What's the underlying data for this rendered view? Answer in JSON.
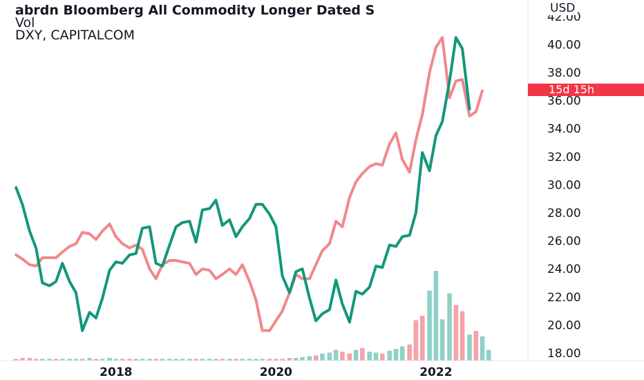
{
  "legend": {
    "title": "abrdn Bloomberg All Commodity Longer Dated S",
    "volume": "Vol",
    "comparison": "DXY, CAPITALCOM"
  },
  "axis": {
    "currency": "USD",
    "countdown": "15d 15h"
  },
  "colors": {
    "primary_series": "#13977a",
    "comparison_series": "#f0888c",
    "volume_up": "#8fd1c6",
    "volume_down": "#f5a3a8",
    "countdown_bg": "#f23645"
  },
  "chart_data": {
    "type": "line",
    "ylabel": "USD",
    "ylim": [
      17.5,
      42.0
    ],
    "y_ticks": [
      "18.00",
      "20.00",
      "22.00",
      "24.00",
      "26.00",
      "28.00",
      "30.00",
      "32.00",
      "34.00",
      "36.00",
      "38.00",
      "40.00",
      "42.00"
    ],
    "x_tick_labels": [
      {
        "label": "2018",
        "t": 2018.0
      },
      {
        "label": "2020",
        "t": 2020.0
      },
      {
        "label": "2022",
        "t": 2022.0
      }
    ],
    "xlim": [
      2016.55,
      2023.15
    ],
    "series": [
      {
        "role": "primary",
        "values": [
          [
            2016.75,
            29.8
          ],
          [
            2016.83,
            28.6
          ],
          [
            2016.92,
            26.7
          ],
          [
            2017.0,
            25.5
          ],
          [
            2017.08,
            23.0
          ],
          [
            2017.17,
            22.8
          ],
          [
            2017.25,
            23.1
          ],
          [
            2017.33,
            24.4
          ],
          [
            2017.42,
            23.1
          ],
          [
            2017.5,
            22.3
          ],
          [
            2017.58,
            19.6
          ],
          [
            2017.67,
            20.9
          ],
          [
            2017.75,
            20.5
          ],
          [
            2017.83,
            21.9
          ],
          [
            2017.92,
            23.9
          ],
          [
            2018.0,
            24.5
          ],
          [
            2018.08,
            24.4
          ],
          [
            2018.17,
            25.0
          ],
          [
            2018.25,
            25.1
          ],
          [
            2018.33,
            26.9
          ],
          [
            2018.42,
            27.0
          ],
          [
            2018.5,
            24.4
          ],
          [
            2018.58,
            24.2
          ],
          [
            2018.67,
            25.7
          ],
          [
            2018.75,
            27.0
          ],
          [
            2018.83,
            27.3
          ],
          [
            2018.92,
            27.4
          ],
          [
            2019.0,
            25.9
          ],
          [
            2019.08,
            28.2
          ],
          [
            2019.17,
            28.3
          ],
          [
            2019.25,
            28.9
          ],
          [
            2019.33,
            27.1
          ],
          [
            2019.42,
            27.5
          ],
          [
            2019.5,
            26.3
          ],
          [
            2019.58,
            27.0
          ],
          [
            2019.67,
            27.6
          ],
          [
            2019.75,
            28.6
          ],
          [
            2019.83,
            28.6
          ],
          [
            2019.92,
            27.9
          ],
          [
            2020.0,
            27.0
          ],
          [
            2020.08,
            23.5
          ],
          [
            2020.17,
            22.3
          ],
          [
            2020.25,
            23.8
          ],
          [
            2020.33,
            24.0
          ],
          [
            2020.42,
            21.9
          ],
          [
            2020.5,
            20.3
          ],
          [
            2020.58,
            20.8
          ],
          [
            2020.67,
            21.1
          ],
          [
            2020.75,
            23.2
          ],
          [
            2020.83,
            21.5
          ],
          [
            2020.92,
            20.2
          ],
          [
            2021.0,
            22.4
          ],
          [
            2021.08,
            22.2
          ],
          [
            2021.17,
            22.7
          ],
          [
            2021.25,
            24.2
          ],
          [
            2021.33,
            24.1
          ],
          [
            2021.42,
            25.7
          ],
          [
            2021.5,
            25.6
          ],
          [
            2021.58,
            26.3
          ],
          [
            2021.67,
            26.4
          ],
          [
            2021.75,
            28.0
          ],
          [
            2021.83,
            32.3
          ],
          [
            2021.92,
            31.0
          ],
          [
            2022.0,
            33.5
          ],
          [
            2022.08,
            34.5
          ],
          [
            2022.17,
            37.4
          ],
          [
            2022.25,
            40.5
          ],
          [
            2022.33,
            39.7
          ],
          [
            2022.42,
            35.4
          ]
        ]
      },
      {
        "role": "comparison",
        "values": [
          [
            2016.75,
            25.0
          ],
          [
            2016.83,
            24.7
          ],
          [
            2016.92,
            24.3
          ],
          [
            2017.0,
            24.2
          ],
          [
            2017.08,
            24.8
          ],
          [
            2017.17,
            24.8
          ],
          [
            2017.25,
            24.8
          ],
          [
            2017.33,
            25.2
          ],
          [
            2017.42,
            25.6
          ],
          [
            2017.5,
            25.8
          ],
          [
            2017.58,
            26.6
          ],
          [
            2017.67,
            26.5
          ],
          [
            2017.75,
            26.1
          ],
          [
            2017.83,
            26.7
          ],
          [
            2017.92,
            27.2
          ],
          [
            2018.0,
            26.3
          ],
          [
            2018.08,
            25.8
          ],
          [
            2018.17,
            25.5
          ],
          [
            2018.25,
            25.7
          ],
          [
            2018.33,
            25.4
          ],
          [
            2018.42,
            24.0
          ],
          [
            2018.5,
            23.3
          ],
          [
            2018.58,
            24.3
          ],
          [
            2018.67,
            24.6
          ],
          [
            2018.75,
            24.6
          ],
          [
            2018.83,
            24.5
          ],
          [
            2018.92,
            24.4
          ],
          [
            2019.0,
            23.6
          ],
          [
            2019.08,
            24.0
          ],
          [
            2019.17,
            23.9
          ],
          [
            2019.25,
            23.3
          ],
          [
            2019.33,
            23.6
          ],
          [
            2019.42,
            24.0
          ],
          [
            2019.5,
            23.6
          ],
          [
            2019.58,
            24.3
          ],
          [
            2019.67,
            23.1
          ],
          [
            2019.75,
            21.8
          ],
          [
            2019.83,
            19.6
          ],
          [
            2019.92,
            19.6
          ],
          [
            2020.0,
            20.3
          ],
          [
            2020.08,
            21.0
          ],
          [
            2020.17,
            22.3
          ],
          [
            2020.25,
            23.6
          ],
          [
            2020.33,
            23.3
          ],
          [
            2020.42,
            23.3
          ],
          [
            2020.5,
            24.3
          ],
          [
            2020.58,
            25.3
          ],
          [
            2020.67,
            25.8
          ],
          [
            2020.75,
            27.4
          ],
          [
            2020.83,
            27.0
          ],
          [
            2020.92,
            29.1
          ],
          [
            2021.0,
            30.2
          ],
          [
            2021.08,
            30.8
          ],
          [
            2021.17,
            31.3
          ],
          [
            2021.25,
            31.5
          ],
          [
            2021.33,
            31.4
          ],
          [
            2021.42,
            32.9
          ],
          [
            2021.5,
            33.7
          ],
          [
            2021.58,
            31.8
          ],
          [
            2021.67,
            30.9
          ],
          [
            2021.75,
            33.2
          ],
          [
            2021.83,
            35.0
          ],
          [
            2021.92,
            38.0
          ],
          [
            2022.0,
            39.8
          ],
          [
            2022.08,
            40.5
          ],
          [
            2022.17,
            36.2
          ],
          [
            2022.25,
            37.4
          ],
          [
            2022.33,
            37.5
          ],
          [
            2022.42,
            34.9
          ],
          [
            2022.5,
            35.2
          ],
          [
            2022.58,
            36.7
          ]
        ]
      }
    ],
    "volume": {
      "scale_max": 100,
      "bars": [
        {
          "t": 2016.75,
          "v": 2,
          "dir": "down"
        },
        {
          "t": 2016.83,
          "v": 3,
          "dir": "down"
        },
        {
          "t": 2016.92,
          "v": 3,
          "dir": "down"
        },
        {
          "t": 2017.0,
          "v": 2,
          "dir": "down"
        },
        {
          "t": 2017.08,
          "v": 2,
          "dir": "up"
        },
        {
          "t": 2017.17,
          "v": 2,
          "dir": "up"
        },
        {
          "t": 2017.25,
          "v": 2,
          "dir": "down"
        },
        {
          "t": 2017.33,
          "v": 2,
          "dir": "up"
        },
        {
          "t": 2017.42,
          "v": 2,
          "dir": "up"
        },
        {
          "t": 2017.5,
          "v": 2,
          "dir": "up"
        },
        {
          "t": 2017.58,
          "v": 2,
          "dir": "down"
        },
        {
          "t": 2017.67,
          "v": 3,
          "dir": "up"
        },
        {
          "t": 2017.75,
          "v": 2,
          "dir": "down"
        },
        {
          "t": 2017.83,
          "v": 2,
          "dir": "up"
        },
        {
          "t": 2017.92,
          "v": 3,
          "dir": "up"
        },
        {
          "t": 2018.0,
          "v": 2,
          "dir": "up"
        },
        {
          "t": 2018.08,
          "v": 2,
          "dir": "down"
        },
        {
          "t": 2018.17,
          "v": 2,
          "dir": "down"
        },
        {
          "t": 2018.25,
          "v": 2,
          "dir": "up"
        },
        {
          "t": 2018.33,
          "v": 2,
          "dir": "up"
        },
        {
          "t": 2018.42,
          "v": 2,
          "dir": "up"
        },
        {
          "t": 2018.5,
          "v": 2,
          "dir": "down"
        },
        {
          "t": 2018.58,
          "v": 2,
          "dir": "up"
        },
        {
          "t": 2018.67,
          "v": 2,
          "dir": "up"
        },
        {
          "t": 2018.75,
          "v": 2,
          "dir": "up"
        },
        {
          "t": 2018.83,
          "v": 2,
          "dir": "up"
        },
        {
          "t": 2018.92,
          "v": 2,
          "dir": "up"
        },
        {
          "t": 2019.0,
          "v": 2,
          "dir": "down"
        },
        {
          "t": 2019.08,
          "v": 2,
          "dir": "up"
        },
        {
          "t": 2019.17,
          "v": 2,
          "dir": "up"
        },
        {
          "t": 2019.25,
          "v": 2,
          "dir": "up"
        },
        {
          "t": 2019.33,
          "v": 2,
          "dir": "down"
        },
        {
          "t": 2019.42,
          "v": 2,
          "dir": "up"
        },
        {
          "t": 2019.5,
          "v": 2,
          "dir": "down"
        },
        {
          "t": 2019.58,
          "v": 2,
          "dir": "up"
        },
        {
          "t": 2019.67,
          "v": 2,
          "dir": "up"
        },
        {
          "t": 2019.75,
          "v": 2,
          "dir": "up"
        },
        {
          "t": 2019.83,
          "v": 2,
          "dir": "up"
        },
        {
          "t": 2019.92,
          "v": 2,
          "dir": "down"
        },
        {
          "t": 2020.0,
          "v": 2,
          "dir": "down"
        },
        {
          "t": 2020.08,
          "v": 2,
          "dir": "down"
        },
        {
          "t": 2020.17,
          "v": 3,
          "dir": "down"
        },
        {
          "t": 2020.25,
          "v": 3,
          "dir": "up"
        },
        {
          "t": 2020.33,
          "v": 4,
          "dir": "up"
        },
        {
          "t": 2020.42,
          "v": 5,
          "dir": "up"
        },
        {
          "t": 2020.5,
          "v": 6,
          "dir": "down"
        },
        {
          "t": 2020.58,
          "v": 8,
          "dir": "up"
        },
        {
          "t": 2020.67,
          "v": 9,
          "dir": "up"
        },
        {
          "t": 2020.75,
          "v": 12,
          "dir": "up"
        },
        {
          "t": 2020.83,
          "v": 10,
          "dir": "down"
        },
        {
          "t": 2020.92,
          "v": 8,
          "dir": "down"
        },
        {
          "t": 2021.0,
          "v": 12,
          "dir": "up"
        },
        {
          "t": 2021.08,
          "v": 14,
          "dir": "down"
        },
        {
          "t": 2021.17,
          "v": 10,
          "dir": "up"
        },
        {
          "t": 2021.25,
          "v": 9,
          "dir": "up"
        },
        {
          "t": 2021.33,
          "v": 8,
          "dir": "down"
        },
        {
          "t": 2021.42,
          "v": 11,
          "dir": "up"
        },
        {
          "t": 2021.5,
          "v": 13,
          "dir": "up"
        },
        {
          "t": 2021.58,
          "v": 16,
          "dir": "up"
        },
        {
          "t": 2021.67,
          "v": 18,
          "dir": "down"
        },
        {
          "t": 2021.75,
          "v": 45,
          "dir": "down"
        },
        {
          "t": 2021.83,
          "v": 50,
          "dir": "down"
        },
        {
          "t": 2021.92,
          "v": 78,
          "dir": "up"
        },
        {
          "t": 2022.0,
          "v": 100,
          "dir": "up"
        },
        {
          "t": 2022.08,
          "v": 46,
          "dir": "up"
        },
        {
          "t": 2022.17,
          "v": 75,
          "dir": "up"
        },
        {
          "t": 2022.25,
          "v": 62,
          "dir": "down"
        },
        {
          "t": 2022.33,
          "v": 55,
          "dir": "down"
        },
        {
          "t": 2022.42,
          "v": 29,
          "dir": "up"
        },
        {
          "t": 2022.5,
          "v": 33,
          "dir": "down"
        },
        {
          "t": 2022.58,
          "v": 27,
          "dir": "up"
        },
        {
          "t": 2022.66,
          "v": 12,
          "dir": "up"
        }
      ]
    }
  }
}
